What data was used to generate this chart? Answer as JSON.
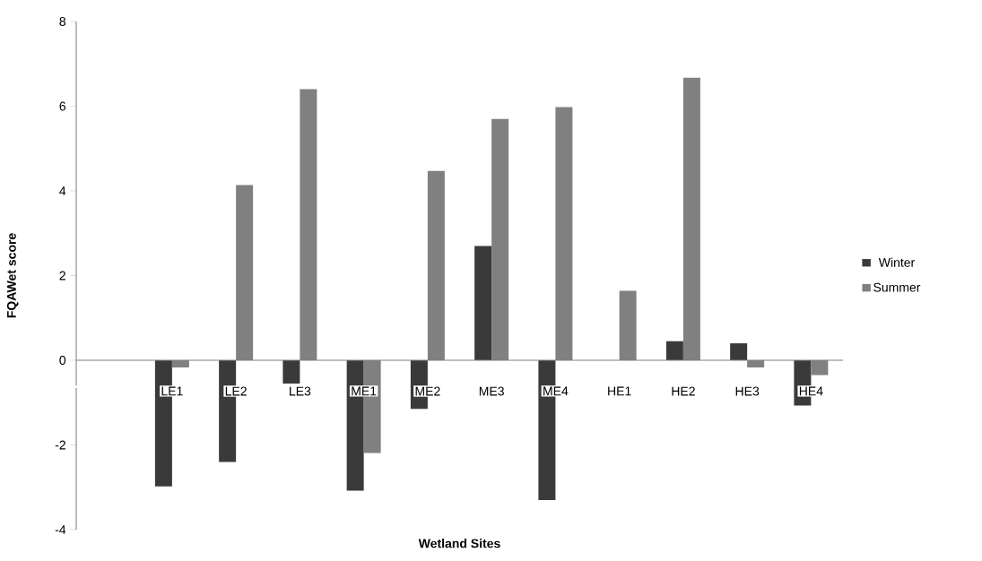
{
  "chart_data": {
    "type": "bar",
    "xlabel": "Wetland Sites",
    "ylabel": "FQAWet score",
    "categories": [
      null,
      "LE1",
      "LE2",
      "LE3",
      "ME1",
      "ME2",
      "ME3",
      "ME4",
      "HE1",
      "HE2",
      "HE3",
      "HE4"
    ],
    "series": [
      {
        "name": "Winter",
        "color": "#3a3a3a",
        "values": [
          null,
          -2.98,
          -2.4,
          -0.55,
          -3.08,
          -1.15,
          2.7,
          -3.3,
          null,
          0.45,
          0.4,
          -1.07
        ]
      },
      {
        "name": "Summer",
        "color": "#808080",
        "values": [
          null,
          -0.17,
          4.14,
          6.4,
          -2.19,
          4.47,
          5.7,
          5.98,
          1.64,
          6.67,
          -0.17,
          -0.35
        ]
      }
    ],
    "ylim": [
      -4,
      8
    ],
    "yticks": [
      -4,
      -2,
      0,
      2,
      4,
      6,
      8
    ],
    "grid": false,
    "legend": "right"
  }
}
